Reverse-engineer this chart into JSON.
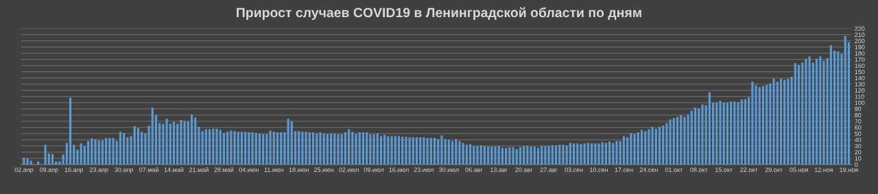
{
  "chart_data": {
    "type": "bar",
    "title": "Прирост случаев COVID19 в Ленинградской области по дням",
    "categories": [
      "02.апр",
      null,
      null,
      null,
      null,
      null,
      null,
      "09.апр",
      null,
      null,
      null,
      null,
      null,
      null,
      "16.апр",
      null,
      null,
      null,
      null,
      null,
      null,
      "23.апр",
      null,
      null,
      null,
      null,
      null,
      null,
      "30.апр",
      null,
      null,
      null,
      null,
      null,
      null,
      "07.май",
      null,
      null,
      null,
      null,
      null,
      null,
      "14.май",
      null,
      null,
      null,
      null,
      null,
      null,
      "21.май",
      null,
      null,
      null,
      null,
      null,
      null,
      "28.май",
      null,
      null,
      null,
      null,
      null,
      null,
      "04.июн",
      null,
      null,
      null,
      null,
      null,
      null,
      "11.июн",
      null,
      null,
      null,
      null,
      null,
      null,
      "18.июн",
      null,
      null,
      null,
      null,
      null,
      null,
      "25.июн",
      null,
      null,
      null,
      null,
      null,
      null,
      "02.июл",
      null,
      null,
      null,
      null,
      null,
      null,
      "09.июл",
      null,
      null,
      null,
      null,
      null,
      null,
      "16.июл",
      null,
      null,
      null,
      null,
      null,
      null,
      "23.июл",
      null,
      null,
      null,
      null,
      null,
      null,
      "30.июл",
      null,
      null,
      null,
      null,
      null,
      null,
      "06.авг",
      null,
      null,
      null,
      null,
      null,
      null,
      "13.авг",
      null,
      null,
      null,
      null,
      null,
      null,
      "20.авг",
      null,
      null,
      null,
      null,
      null,
      null,
      "27.авг",
      null,
      null,
      null,
      null,
      null,
      null,
      "03.сен",
      null,
      null,
      null,
      null,
      null,
      null,
      "10.сен",
      null,
      null,
      null,
      null,
      null,
      null,
      "17.сен",
      null,
      null,
      null,
      null,
      null,
      null,
      "24.сен",
      null,
      null,
      null,
      null,
      null,
      null,
      "01.окт",
      null,
      null,
      null,
      null,
      null,
      null,
      "08.окт",
      null,
      null,
      null,
      null,
      null,
      null,
      "15.окт",
      null,
      null,
      null,
      null,
      null,
      null,
      "22.окт",
      null,
      null,
      null,
      null,
      null,
      null,
      "29.окт",
      null,
      null,
      null,
      null,
      null,
      null,
      "05.ноя",
      null,
      null,
      null,
      null,
      null,
      null,
      "12.ноя",
      null,
      null,
      null,
      null,
      null,
      null,
      "19.ноя"
    ],
    "values": [
      11,
      10,
      6,
      0,
      5,
      0,
      32,
      18,
      17,
      5,
      5,
      16,
      35,
      108,
      32,
      24,
      34,
      30,
      38,
      42,
      41,
      39,
      39,
      43,
      43,
      43,
      38,
      53,
      51,
      44,
      46,
      62,
      59,
      53,
      51,
      63,
      92,
      80,
      67,
      66,
      74,
      66,
      69,
      66,
      72,
      70,
      70,
      81,
      76,
      61,
      54,
      57,
      57,
      58,
      58,
      56,
      51,
      53,
      55,
      54,
      53,
      53,
      53,
      52,
      52,
      51,
      50,
      49,
      49,
      55,
      53,
      52,
      52,
      52,
      74,
      70,
      54,
      54,
      53,
      53,
      52,
      52,
      50,
      52,
      50,
      49,
      50,
      50,
      49,
      49,
      52,
      57,
      53,
      50,
      52,
      52,
      52,
      49,
      49,
      50,
      46,
      48,
      46,
      46,
      46,
      46,
      45,
      45,
      44,
      44,
      44,
      44,
      44,
      43,
      43,
      43,
      41,
      47,
      41,
      40,
      38,
      41,
      38,
      35,
      32,
      33,
      30,
      30,
      31,
      30,
      29,
      29,
      29,
      30,
      27,
      27,
      28,
      28,
      25,
      28,
      30,
      30,
      29,
      29,
      27,
      30,
      30,
      30,
      31,
      31,
      32,
      32,
      31,
      35,
      34,
      34,
      33,
      34,
      35,
      34,
      34,
      34,
      36,
      35,
      37,
      35,
      38,
      38,
      46,
      44,
      51,
      49,
      52,
      56,
      54,
      57,
      61,
      58,
      61,
      63,
      67,
      73,
      75,
      77,
      80,
      77,
      81,
      87,
      92,
      91,
      97,
      96,
      117,
      100,
      100,
      103,
      100,
      100,
      102,
      102,
      101,
      105,
      106,
      109,
      134,
      128,
      125,
      127,
      129,
      131,
      139,
      134,
      139,
      137,
      139,
      142,
      164,
      161,
      165,
      171,
      175,
      165,
      171,
      175,
      168,
      172,
      193,
      184,
      183,
      179,
      208,
      198
    ],
    "color": "#5b9bd5",
    "ylim": [
      0,
      220
    ],
    "yticks": [
      0,
      10,
      20,
      30,
      40,
      50,
      60,
      70,
      80,
      90,
      100,
      110,
      120,
      130,
      140,
      150,
      160,
      170,
      180,
      190,
      200,
      210,
      220
    ],
    "grid": "y"
  }
}
